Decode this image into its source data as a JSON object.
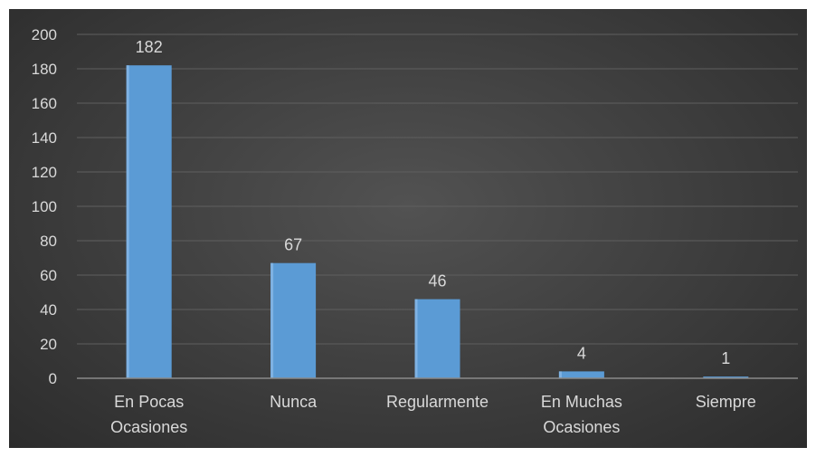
{
  "chart_data": {
    "type": "bar",
    "categories": [
      [
        "En Pocas",
        "Ocasiones"
      ],
      [
        "Nunca"
      ],
      [
        "Regularmente"
      ],
      [
        "En Muchas",
        "Ocasiones"
      ],
      [
        "Siempre"
      ]
    ],
    "values": [
      182,
      67,
      46,
      4,
      1
    ],
    "data_labels": [
      "182",
      "67",
      "46",
      "4",
      "1"
    ],
    "y_ticks": [
      "0",
      "20",
      "40",
      "60",
      "80",
      "100",
      "120",
      "140",
      "160",
      "180",
      "200"
    ],
    "ylim": [
      0,
      200
    ],
    "title": "",
    "xlabel": "",
    "ylabel": "",
    "grid": true,
    "legend": "none",
    "colors": {
      "bar": "#5b9bd5",
      "bar_highlight": "#7fb2e3",
      "grid": "#5f5f5f",
      "axis": "#8a8a8a",
      "text": "#d9d9d9"
    }
  }
}
